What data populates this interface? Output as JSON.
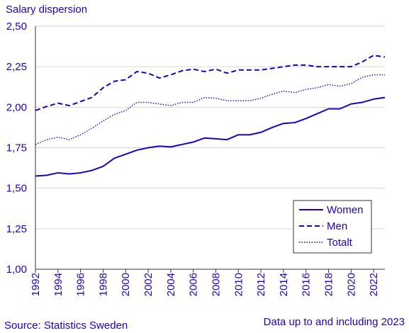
{
  "chart_data": {
    "type": "line",
    "title": "",
    "ylabel": "Salary dispersion",
    "xlabel": "",
    "source": "Source: Statistics Sweden",
    "note": "Data up to and including 2023",
    "ylim": [
      1.0,
      2.5
    ],
    "yticks": [
      "1,00",
      "1,25",
      "1,50",
      "1,75",
      "2,00",
      "2,25",
      "2,50"
    ],
    "ytick_values": [
      1.0,
      1.25,
      1.5,
      1.75,
      2.0,
      2.25,
      2.5
    ],
    "xlim": [
      1992,
      2023
    ],
    "xticks": [
      "1992",
      "1994",
      "1996",
      "1998",
      "2000",
      "2002",
      "2004",
      "2006",
      "2008",
      "2010",
      "2012",
      "2014",
      "2016",
      "2018",
      "2020",
      "2022"
    ],
    "x": [
      1992,
      1993,
      1994,
      1995,
      1996,
      1997,
      1998,
      1999,
      2000,
      2001,
      2002,
      2003,
      2004,
      2005,
      2006,
      2007,
      2008,
      2009,
      2010,
      2011,
      2012,
      2013,
      2014,
      2015,
      2016,
      2017,
      2018,
      2019,
      2020,
      2021,
      2022,
      2023
    ],
    "grid": "horizontal",
    "legend_position": "bottom-right",
    "line_color": "#1e00be",
    "series": [
      {
        "name": "Women",
        "style": "solid",
        "values": [
          1.575,
          1.58,
          1.595,
          1.588,
          1.595,
          1.61,
          1.635,
          1.685,
          1.71,
          1.735,
          1.75,
          1.76,
          1.755,
          1.77,
          1.785,
          1.81,
          1.805,
          1.8,
          1.83,
          1.83,
          1.845,
          1.875,
          1.9,
          1.905,
          1.93,
          1.96,
          1.99,
          1.99,
          2.02,
          2.03,
          2.05,
          2.06
        ]
      },
      {
        "name": "Men",
        "style": "dashed",
        "values": [
          1.98,
          2.005,
          2.025,
          2.01,
          2.035,
          2.06,
          2.12,
          2.16,
          2.17,
          2.22,
          2.21,
          2.18,
          2.2,
          2.225,
          2.235,
          2.22,
          2.235,
          2.21,
          2.23,
          2.23,
          2.23,
          2.24,
          2.25,
          2.26,
          2.26,
          2.25,
          2.25,
          2.25,
          2.25,
          2.28,
          2.32,
          2.31
        ]
      },
      {
        "name": "Totalt",
        "style": "dotted",
        "values": [
          1.77,
          1.8,
          1.815,
          1.8,
          1.83,
          1.87,
          1.915,
          1.955,
          1.98,
          2.03,
          2.03,
          2.02,
          2.01,
          2.03,
          2.03,
          2.06,
          2.055,
          2.04,
          2.04,
          2.04,
          2.055,
          2.08,
          2.1,
          2.09,
          2.11,
          2.12,
          2.14,
          2.13,
          2.145,
          2.185,
          2.2,
          2.2
        ]
      }
    ]
  }
}
